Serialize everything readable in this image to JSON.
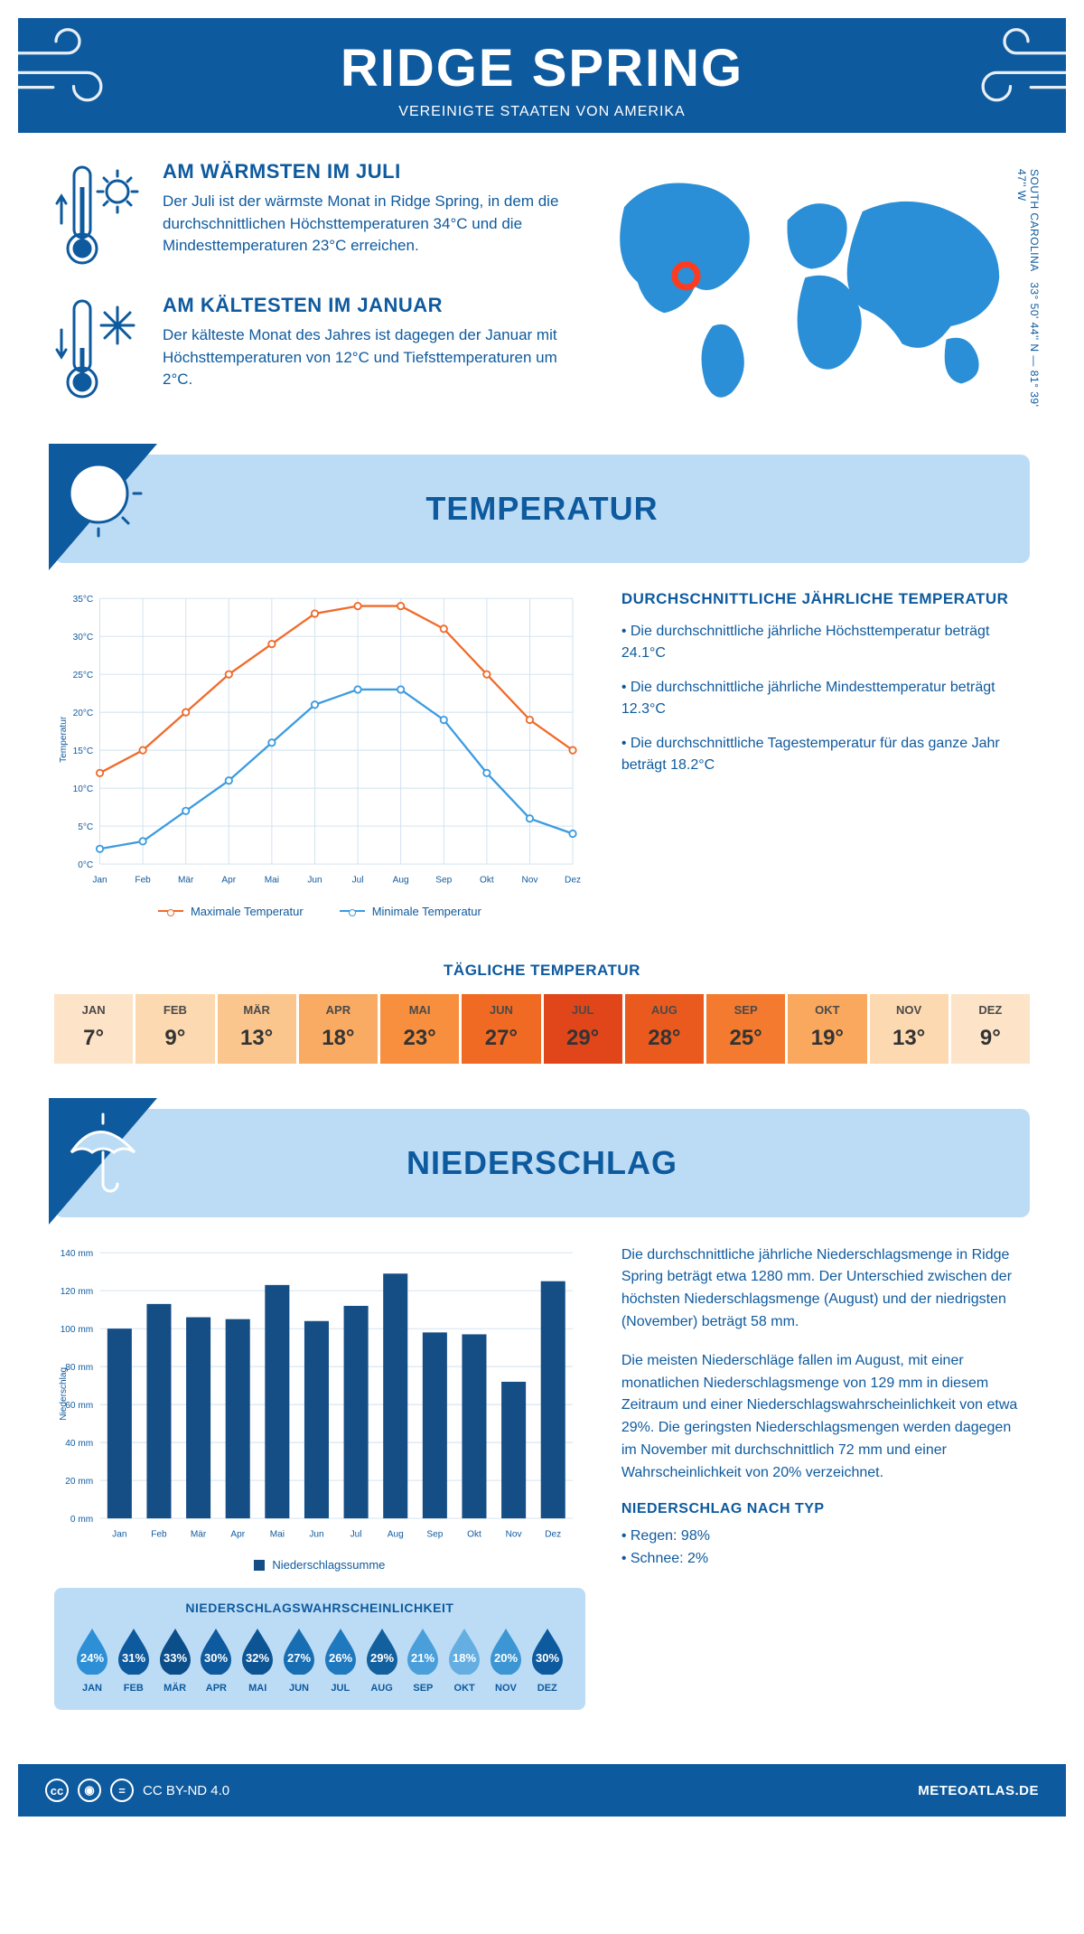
{
  "colors": {
    "brand": "#0e5a9e",
    "band_light": "#bcdcf5",
    "max_line": "#f06a2a",
    "min_line": "#3b9be0",
    "bar": "#154d85",
    "grid": "#cfe0ee"
  },
  "header": {
    "title": "RIDGE SPRING",
    "subtitle": "VEREINIGTE STAATEN VON AMERIKA"
  },
  "coords": "33° 50' 44'' N — 81° 39' 47'' W",
  "region": "SOUTH CAROLINA",
  "facts": {
    "warm": {
      "title": "AM WÄRMSTEN IM JULI",
      "text": "Der Juli ist der wärmste Monat in Ridge Spring, in dem die durchschnittlichen Höchsttemperaturen 34°C und die Mindesttemperaturen 23°C erreichen."
    },
    "cold": {
      "title": "AM KÄLTESTEN IM JANUAR",
      "text": "Der kälteste Monat des Jahres ist dagegen der Januar mit Höchsttemperaturen von 12°C und Tiefsttemperaturen um 2°C."
    }
  },
  "temperature_section": {
    "title": "TEMPERATUR"
  },
  "months": [
    "Jan",
    "Feb",
    "Mär",
    "Apr",
    "Mai",
    "Jun",
    "Jul",
    "Aug",
    "Sep",
    "Okt",
    "Nov",
    "Dez"
  ],
  "months_upper": [
    "JAN",
    "FEB",
    "MÄR",
    "APR",
    "MAI",
    "JUN",
    "JUL",
    "AUG",
    "SEP",
    "OKT",
    "NOV",
    "DEZ"
  ],
  "temp_chart": {
    "ylabel": "Temperatur",
    "ymin": 0,
    "ymax": 35,
    "ystep": 5,
    "max_series": [
      12,
      15,
      20,
      25,
      29,
      33,
      34,
      34,
      31,
      25,
      19,
      15
    ],
    "min_series": [
      2,
      3,
      7,
      11,
      16,
      21,
      23,
      23,
      19,
      12,
      6,
      4
    ],
    "legend_max": "Maximale Temperatur",
    "legend_min": "Minimale Temperatur"
  },
  "temp_text": {
    "heading": "DURCHSCHNITTLICHE JÄHRLICHE TEMPERATUR",
    "b1": "• Die durchschnittliche jährliche Höchsttemperatur beträgt 24.1°C",
    "b2": "• Die durchschnittliche jährliche Mindesttemperatur beträgt 12.3°C",
    "b3": "• Die durchschnittliche Tagestemperatur für das ganze Jahr beträgt 18.2°C"
  },
  "daily_temp": {
    "title": "TÄGLICHE TEMPERATUR",
    "values": [
      "7°",
      "9°",
      "13°",
      "18°",
      "23°",
      "27°",
      "29°",
      "28°",
      "25°",
      "19°",
      "13°",
      "9°"
    ],
    "cell_colors": [
      "#fde4c8",
      "#fcd9b0",
      "#fbc68e",
      "#f9ab64",
      "#f78f3e",
      "#f16a24",
      "#e0461a",
      "#ea5a1f",
      "#f37a2e",
      "#f9a85e",
      "#fcd9b0",
      "#fde4c8"
    ]
  },
  "precip_section": {
    "title": "NIEDERSCHLAG"
  },
  "precip_chart": {
    "ylabel": "Niederschlag",
    "ymin": 0,
    "ymax": 140,
    "ystep": 20,
    "values": [
      100,
      113,
      106,
      105,
      123,
      104,
      112,
      129,
      98,
      97,
      72,
      125
    ],
    "legend": "Niederschlagssumme"
  },
  "precip_text": {
    "p1": "Die durchschnittliche jährliche Niederschlagsmenge in Ridge Spring beträgt etwa 1280 mm. Der Unterschied zwischen der höchsten Niederschlagsmenge (August) und der niedrigsten (November) beträgt 58 mm.",
    "p2": "Die meisten Niederschläge fallen im August, mit einer monatlichen Niederschlagsmenge von 129 mm in diesem Zeitraum und einer Niederschlagswahrscheinlichkeit von etwa 29%. Die geringsten Niederschlagsmengen werden dagegen im November mit durchschnittlich 72 mm und einer Wahrscheinlichkeit von 20% verzeichnet.",
    "type_heading": "NIEDERSCHLAG NACH TYP",
    "type1": "• Regen: 98%",
    "type2": "• Schnee: 2%"
  },
  "precip_prob": {
    "title": "NIEDERSCHLAGSWAHRSCHEINLICHKEIT",
    "values": [
      24,
      31,
      33,
      30,
      32,
      27,
      26,
      29,
      21,
      18,
      20,
      30
    ],
    "drop_colors": [
      "#2d8fd6",
      "#0e5a9e",
      "#0c4e8a",
      "#0e5a9e",
      "#0d5494",
      "#186eb3",
      "#1f79bf",
      "#13609f",
      "#4a9fdb",
      "#64aee2",
      "#3b96d3",
      "#0e5a9e"
    ]
  },
  "footer": {
    "license": "CC BY-ND 4.0",
    "site": "METEOATLAS.DE"
  }
}
